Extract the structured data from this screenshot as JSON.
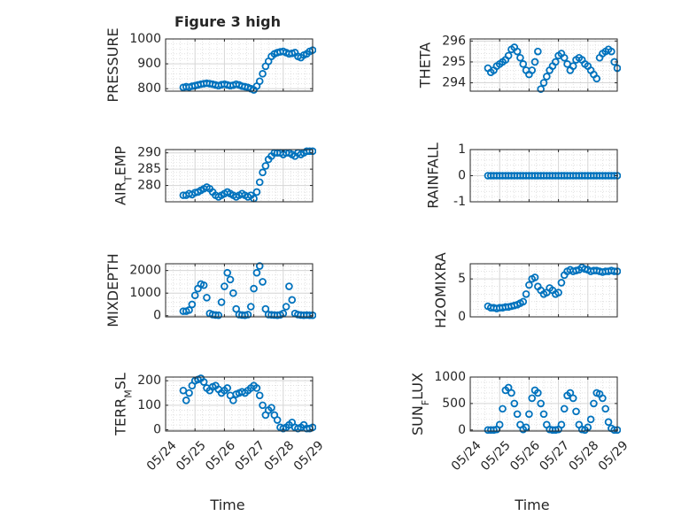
{
  "figure": {
    "title": "Figure 3 high",
    "xlabel": "Time",
    "x_ticks": [
      "05/24",
      "05/25",
      "05/26",
      "05/27",
      "05/28",
      "05/29"
    ],
    "marker_color": "#0072BD",
    "grid_color": "#cfcfcf",
    "axis_color": "#262626"
  },
  "chart_data": [
    {
      "type": "scatter",
      "ylabel": "PRESSURE",
      "xlim": [
        0,
        5
      ],
      "ylim": [
        790,
        1000
      ],
      "yticks": [
        800,
        900,
        1000
      ],
      "show_xticks": false,
      "x": [
        0.6,
        0.7,
        0.8,
        0.9,
        1.0,
        1.1,
        1.2,
        1.3,
        1.4,
        1.5,
        1.6,
        1.7,
        1.8,
        1.9,
        2.0,
        2.1,
        2.2,
        2.3,
        2.4,
        2.5,
        2.6,
        2.7,
        2.8,
        2.9,
        3.0,
        3.1,
        3.2,
        3.3,
        3.4,
        3.5,
        3.6,
        3.7,
        3.8,
        3.9,
        4.0,
        4.1,
        4.2,
        4.3,
        4.4,
        4.5,
        4.6,
        4.7,
        4.8,
        4.9,
        5.0
      ],
      "y": [
        805,
        808,
        806,
        810,
        812,
        815,
        818,
        820,
        822,
        820,
        818,
        815,
        812,
        816,
        818,
        815,
        812,
        814,
        818,
        815,
        810,
        808,
        805,
        800,
        795,
        810,
        830,
        860,
        890,
        910,
        930,
        940,
        945,
        948,
        950,
        945,
        940,
        942,
        945,
        930,
        925,
        935,
        940,
        950,
        955
      ]
    },
    {
      "type": "scatter",
      "ylabel": "THETA",
      "xlim": [
        0,
        5
      ],
      "ylim": [
        293.6,
        296.1
      ],
      "yticks": [
        294,
        295,
        296
      ],
      "show_xticks": false,
      "x": [
        0.6,
        0.7,
        0.8,
        0.9,
        1.0,
        1.1,
        1.2,
        1.3,
        1.4,
        1.5,
        1.6,
        1.7,
        1.8,
        1.9,
        2.0,
        2.1,
        2.2,
        2.3,
        2.4,
        2.5,
        2.6,
        2.7,
        2.8,
        2.9,
        3.0,
        3.1,
        3.2,
        3.3,
        3.4,
        3.5,
        3.6,
        3.7,
        3.8,
        3.9,
        4.0,
        4.1,
        4.2,
        4.3,
        4.4,
        4.5,
        4.6,
        4.7,
        4.8,
        4.9,
        5.0
      ],
      "y": [
        294.7,
        294.5,
        294.6,
        294.8,
        294.9,
        295.0,
        295.1,
        295.3,
        295.6,
        295.7,
        295.5,
        295.2,
        294.9,
        294.6,
        294.4,
        294.6,
        295.0,
        295.5,
        293.7,
        294.0,
        294.3,
        294.6,
        294.8,
        295.0,
        295.3,
        295.4,
        295.2,
        294.9,
        294.6,
        294.8,
        295.1,
        295.2,
        295.1,
        294.9,
        294.8,
        294.6,
        294.4,
        294.2,
        295.2,
        295.4,
        295.5,
        295.6,
        295.5,
        295.0,
        294.7
      ]
    },
    {
      "type": "scatter",
      "ylabel": "AIR_TEMP",
      "xlim": [
        0,
        5
      ],
      "ylim": [
        275,
        291
      ],
      "yticks": [
        280,
        285,
        290
      ],
      "show_xticks": false,
      "x": [
        0.6,
        0.7,
        0.8,
        0.9,
        1.0,
        1.1,
        1.2,
        1.3,
        1.4,
        1.5,
        1.6,
        1.7,
        1.8,
        1.9,
        2.0,
        2.1,
        2.2,
        2.3,
        2.4,
        2.5,
        2.6,
        2.7,
        2.8,
        2.9,
        3.0,
        3.1,
        3.2,
        3.3,
        3.4,
        3.5,
        3.6,
        3.7,
        3.8,
        3.9,
        4.0,
        4.1,
        4.2,
        4.3,
        4.4,
        4.5,
        4.6,
        4.7,
        4.8,
        4.9,
        5.0
      ],
      "y": [
        277,
        277,
        277.5,
        277.2,
        277.8,
        278,
        278.5,
        279,
        279.5,
        279,
        278,
        277,
        276.5,
        277,
        277.5,
        278,
        277.5,
        277,
        276.5,
        277,
        277.5,
        277,
        276.5,
        277,
        276,
        278,
        281,
        284,
        286,
        288,
        289,
        290,
        290,
        290,
        289.5,
        290,
        290,
        289.5,
        289,
        290,
        289.5,
        290,
        290.5,
        290.5,
        290.5
      ]
    },
    {
      "type": "scatter",
      "ylabel": "RAINFALL",
      "xlim": [
        0,
        5
      ],
      "ylim": [
        -1,
        1
      ],
      "yticks": [
        -1,
        0,
        1
      ],
      "show_xticks": false,
      "x": [
        0.6,
        0.7,
        0.8,
        0.9,
        1.0,
        1.1,
        1.2,
        1.3,
        1.4,
        1.5,
        1.6,
        1.7,
        1.8,
        1.9,
        2.0,
        2.1,
        2.2,
        2.3,
        2.4,
        2.5,
        2.6,
        2.7,
        2.8,
        2.9,
        3.0,
        3.1,
        3.2,
        3.3,
        3.4,
        3.5,
        3.6,
        3.7,
        3.8,
        3.9,
        4.0,
        4.1,
        4.2,
        4.3,
        4.4,
        4.5,
        4.6,
        4.7,
        4.8,
        4.9,
        5.0
      ],
      "y": [
        0,
        0,
        0,
        0,
        0,
        0,
        0,
        0,
        0,
        0,
        0,
        0,
        0,
        0,
        0,
        0,
        0,
        0,
        0,
        0,
        0,
        0,
        0,
        0,
        0,
        0,
        0,
        0,
        0,
        0,
        0,
        0,
        0,
        0,
        0,
        0,
        0,
        0,
        0,
        0,
        0,
        0,
        0,
        0,
        0
      ]
    },
    {
      "type": "scatter",
      "ylabel": "MIXDEPTH",
      "xlim": [
        0,
        5
      ],
      "ylim": [
        -50,
        2300
      ],
      "yticks": [
        0,
        1000,
        2000
      ],
      "show_xticks": false,
      "x": [
        0.6,
        0.7,
        0.8,
        0.9,
        1.0,
        1.1,
        1.2,
        1.3,
        1.4,
        1.5,
        1.6,
        1.7,
        1.8,
        1.9,
        2.0,
        2.1,
        2.2,
        2.3,
        2.4,
        2.5,
        2.6,
        2.7,
        2.8,
        2.9,
        3.0,
        3.1,
        3.2,
        3.3,
        3.4,
        3.5,
        3.6,
        3.7,
        3.8,
        3.9,
        4.0,
        4.1,
        4.2,
        4.3,
        4.4,
        4.5,
        4.6,
        4.7,
        4.8,
        4.9,
        5.0
      ],
      "y": [
        200,
        200,
        250,
        500,
        900,
        1200,
        1400,
        1350,
        800,
        100,
        50,
        30,
        20,
        600,
        1300,
        1900,
        1600,
        1000,
        300,
        50,
        30,
        20,
        50,
        400,
        1200,
        1900,
        2200,
        1500,
        300,
        50,
        40,
        30,
        20,
        40,
        100,
        400,
        1300,
        700,
        100,
        50,
        30,
        20,
        30,
        20,
        20
      ]
    },
    {
      "type": "scatter",
      "ylabel": "H2OMIXRA",
      "xlim": [
        0,
        5
      ],
      "ylim": [
        0,
        7
      ],
      "yticks": [
        0,
        5
      ],
      "show_xticks": false,
      "x": [
        0.6,
        0.7,
        0.8,
        0.9,
        1.0,
        1.1,
        1.2,
        1.3,
        1.4,
        1.5,
        1.6,
        1.7,
        1.8,
        1.9,
        2.0,
        2.1,
        2.2,
        2.3,
        2.4,
        2.5,
        2.6,
        2.7,
        2.8,
        2.9,
        3.0,
        3.1,
        3.2,
        3.3,
        3.4,
        3.5,
        3.6,
        3.7,
        3.8,
        3.9,
        4.0,
        4.1,
        4.2,
        4.3,
        4.4,
        4.5,
        4.6,
        4.7,
        4.8,
        4.9,
        5.0
      ],
      "y": [
        1.4,
        1.2,
        1.2,
        1.1,
        1.2,
        1.2,
        1.3,
        1.3,
        1.4,
        1.5,
        1.6,
        1.8,
        2.0,
        3.0,
        4.2,
        5.0,
        5.2,
        4.0,
        3.5,
        3.0,
        3.2,
        3.8,
        3.5,
        3.0,
        3.2,
        4.5,
        5.5,
        6.0,
        6.2,
        6.0,
        6.1,
        6.2,
        6.5,
        6.3,
        6.2,
        6.0,
        6.1,
        6.1,
        6.0,
        5.9,
        6.0,
        6.0,
        6.1,
        6.0,
        6.0
      ]
    },
    {
      "type": "scatter",
      "ylabel": "TERR_MSL",
      "xlim": [
        0,
        5
      ],
      "ylim": [
        -5,
        215
      ],
      "yticks": [
        0,
        100,
        200
      ],
      "show_xticks": true,
      "x": [
        0.6,
        0.7,
        0.8,
        0.9,
        1.0,
        1.1,
        1.2,
        1.3,
        1.4,
        1.5,
        1.6,
        1.7,
        1.8,
        1.9,
        2.0,
        2.1,
        2.2,
        2.3,
        2.4,
        2.5,
        2.6,
        2.7,
        2.8,
        2.9,
        3.0,
        3.1,
        3.2,
        3.3,
        3.4,
        3.5,
        3.6,
        3.7,
        3.8,
        3.9,
        4.0,
        4.1,
        4.2,
        4.3,
        4.4,
        4.5,
        4.6,
        4.7,
        4.8,
        4.9,
        5.0
      ],
      "y": [
        160,
        120,
        150,
        180,
        200,
        205,
        210,
        195,
        170,
        160,
        175,
        180,
        165,
        150,
        160,
        170,
        140,
        120,
        145,
        150,
        155,
        150,
        160,
        170,
        180,
        170,
        140,
        100,
        60,
        80,
        90,
        60,
        40,
        10,
        5,
        10,
        20,
        30,
        10,
        5,
        10,
        20,
        5,
        5,
        10
      ]
    },
    {
      "type": "scatter",
      "ylabel": "SUN_FLUX",
      "xlim": [
        0,
        5
      ],
      "ylim": [
        -20,
        1000
      ],
      "yticks": [
        0,
        500,
        1000
      ],
      "show_xticks": true,
      "x": [
        0.6,
        0.7,
        0.8,
        0.9,
        1.0,
        1.1,
        1.2,
        1.3,
        1.4,
        1.5,
        1.6,
        1.7,
        1.8,
        1.9,
        2.0,
        2.1,
        2.2,
        2.3,
        2.4,
        2.5,
        2.6,
        2.7,
        2.8,
        2.9,
        3.0,
        3.1,
        3.2,
        3.3,
        3.4,
        3.5,
        3.6,
        3.7,
        3.8,
        3.9,
        4.0,
        4.1,
        4.2,
        4.3,
        4.4,
        4.5,
        4.6,
        4.7,
        4.8,
        4.9,
        5.0
      ],
      "y": [
        0,
        0,
        0,
        10,
        100,
        400,
        750,
        800,
        700,
        500,
        300,
        100,
        10,
        50,
        300,
        600,
        750,
        700,
        500,
        300,
        100,
        10,
        0,
        0,
        10,
        100,
        400,
        650,
        700,
        600,
        350,
        100,
        10,
        0,
        50,
        200,
        500,
        700,
        680,
        600,
        400,
        150,
        30,
        0,
        0
      ]
    }
  ]
}
